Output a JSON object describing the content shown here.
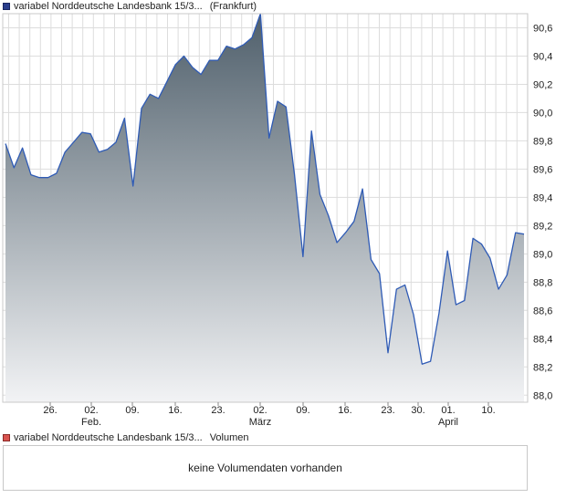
{
  "legend_price": {
    "name": "variabel Norddeutsche Landesbank 15/3...",
    "exchange": "(Frankfurt)"
  },
  "legend_volume": {
    "name": "variabel Norddeutsche Landesbank 15/3...",
    "label": "Volumen"
  },
  "volume_panel": {
    "message": "keine Volumendaten vorhanden"
  },
  "colors": {
    "line": "#2f5bb5",
    "area_top": "#4f5f6b",
    "area_bottom": "#f2f3f5",
    "grid": "#dddddd"
  },
  "chart_data": {
    "type": "area",
    "title": "",
    "xlabel": "",
    "ylabel": "",
    "ylim": [
      87.95,
      90.7
    ],
    "grid": true,
    "y_ticks": [
      "90,6",
      "90,4",
      "90,2",
      "90,0",
      "89,8",
      "89,6",
      "89,4",
      "89,2",
      "89,0",
      "88,8",
      "88,6",
      "88,4",
      "88,2",
      "88,0"
    ],
    "x_ticks": [
      {
        "day": "26.",
        "month": ""
      },
      {
        "day": "02.",
        "month": "Feb."
      },
      {
        "day": "09.",
        "month": ""
      },
      {
        "day": "16.",
        "month": ""
      },
      {
        "day": "23.",
        "month": ""
      },
      {
        "day": "02.",
        "month": "März"
      },
      {
        "day": "09.",
        "month": ""
      },
      {
        "day": "16.",
        "month": ""
      },
      {
        "day": "23.",
        "month": ""
      },
      {
        "day": "30.",
        "month": ""
      },
      {
        "day": "01.",
        "month": "April"
      },
      {
        "day": "10.",
        "month": ""
      }
    ],
    "series": [
      {
        "values": [
          89.78,
          89.61,
          89.75,
          89.56,
          89.54,
          89.54,
          89.57,
          89.72,
          89.79,
          89.86,
          89.85,
          89.72,
          89.74,
          89.79,
          89.96,
          89.48,
          90.03,
          90.13,
          90.1,
          90.22,
          90.34,
          90.4,
          90.32,
          90.27,
          90.37,
          90.37,
          90.47,
          90.45,
          90.48,
          90.53,
          90.7,
          89.82,
          90.08,
          90.04,
          89.56,
          88.98,
          89.87,
          89.42,
          89.27,
          89.08,
          89.15,
          89.23,
          89.46,
          88.96,
          88.86,
          88.3,
          88.75,
          88.78,
          88.57,
          88.22,
          88.24,
          88.58,
          89.02,
          88.64,
          88.67,
          89.11,
          89.07,
          88.97,
          88.75,
          88.85,
          89.15,
          89.14
        ]
      }
    ]
  }
}
